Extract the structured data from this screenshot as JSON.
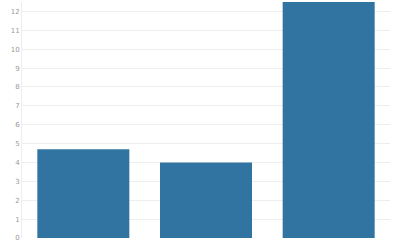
{
  "chart_data": {
    "type": "bar",
    "categories": [
      null,
      null,
      null
    ],
    "values": [
      4.7,
      4.0,
      12.5
    ],
    "color": "#3274a1",
    "ylim": [
      0,
      12.5
    ],
    "yticks": [
      0,
      1,
      2,
      3,
      4,
      5,
      6,
      7,
      8,
      9,
      10,
      11,
      12
    ],
    "grid": true,
    "tick_labels": "y"
  }
}
